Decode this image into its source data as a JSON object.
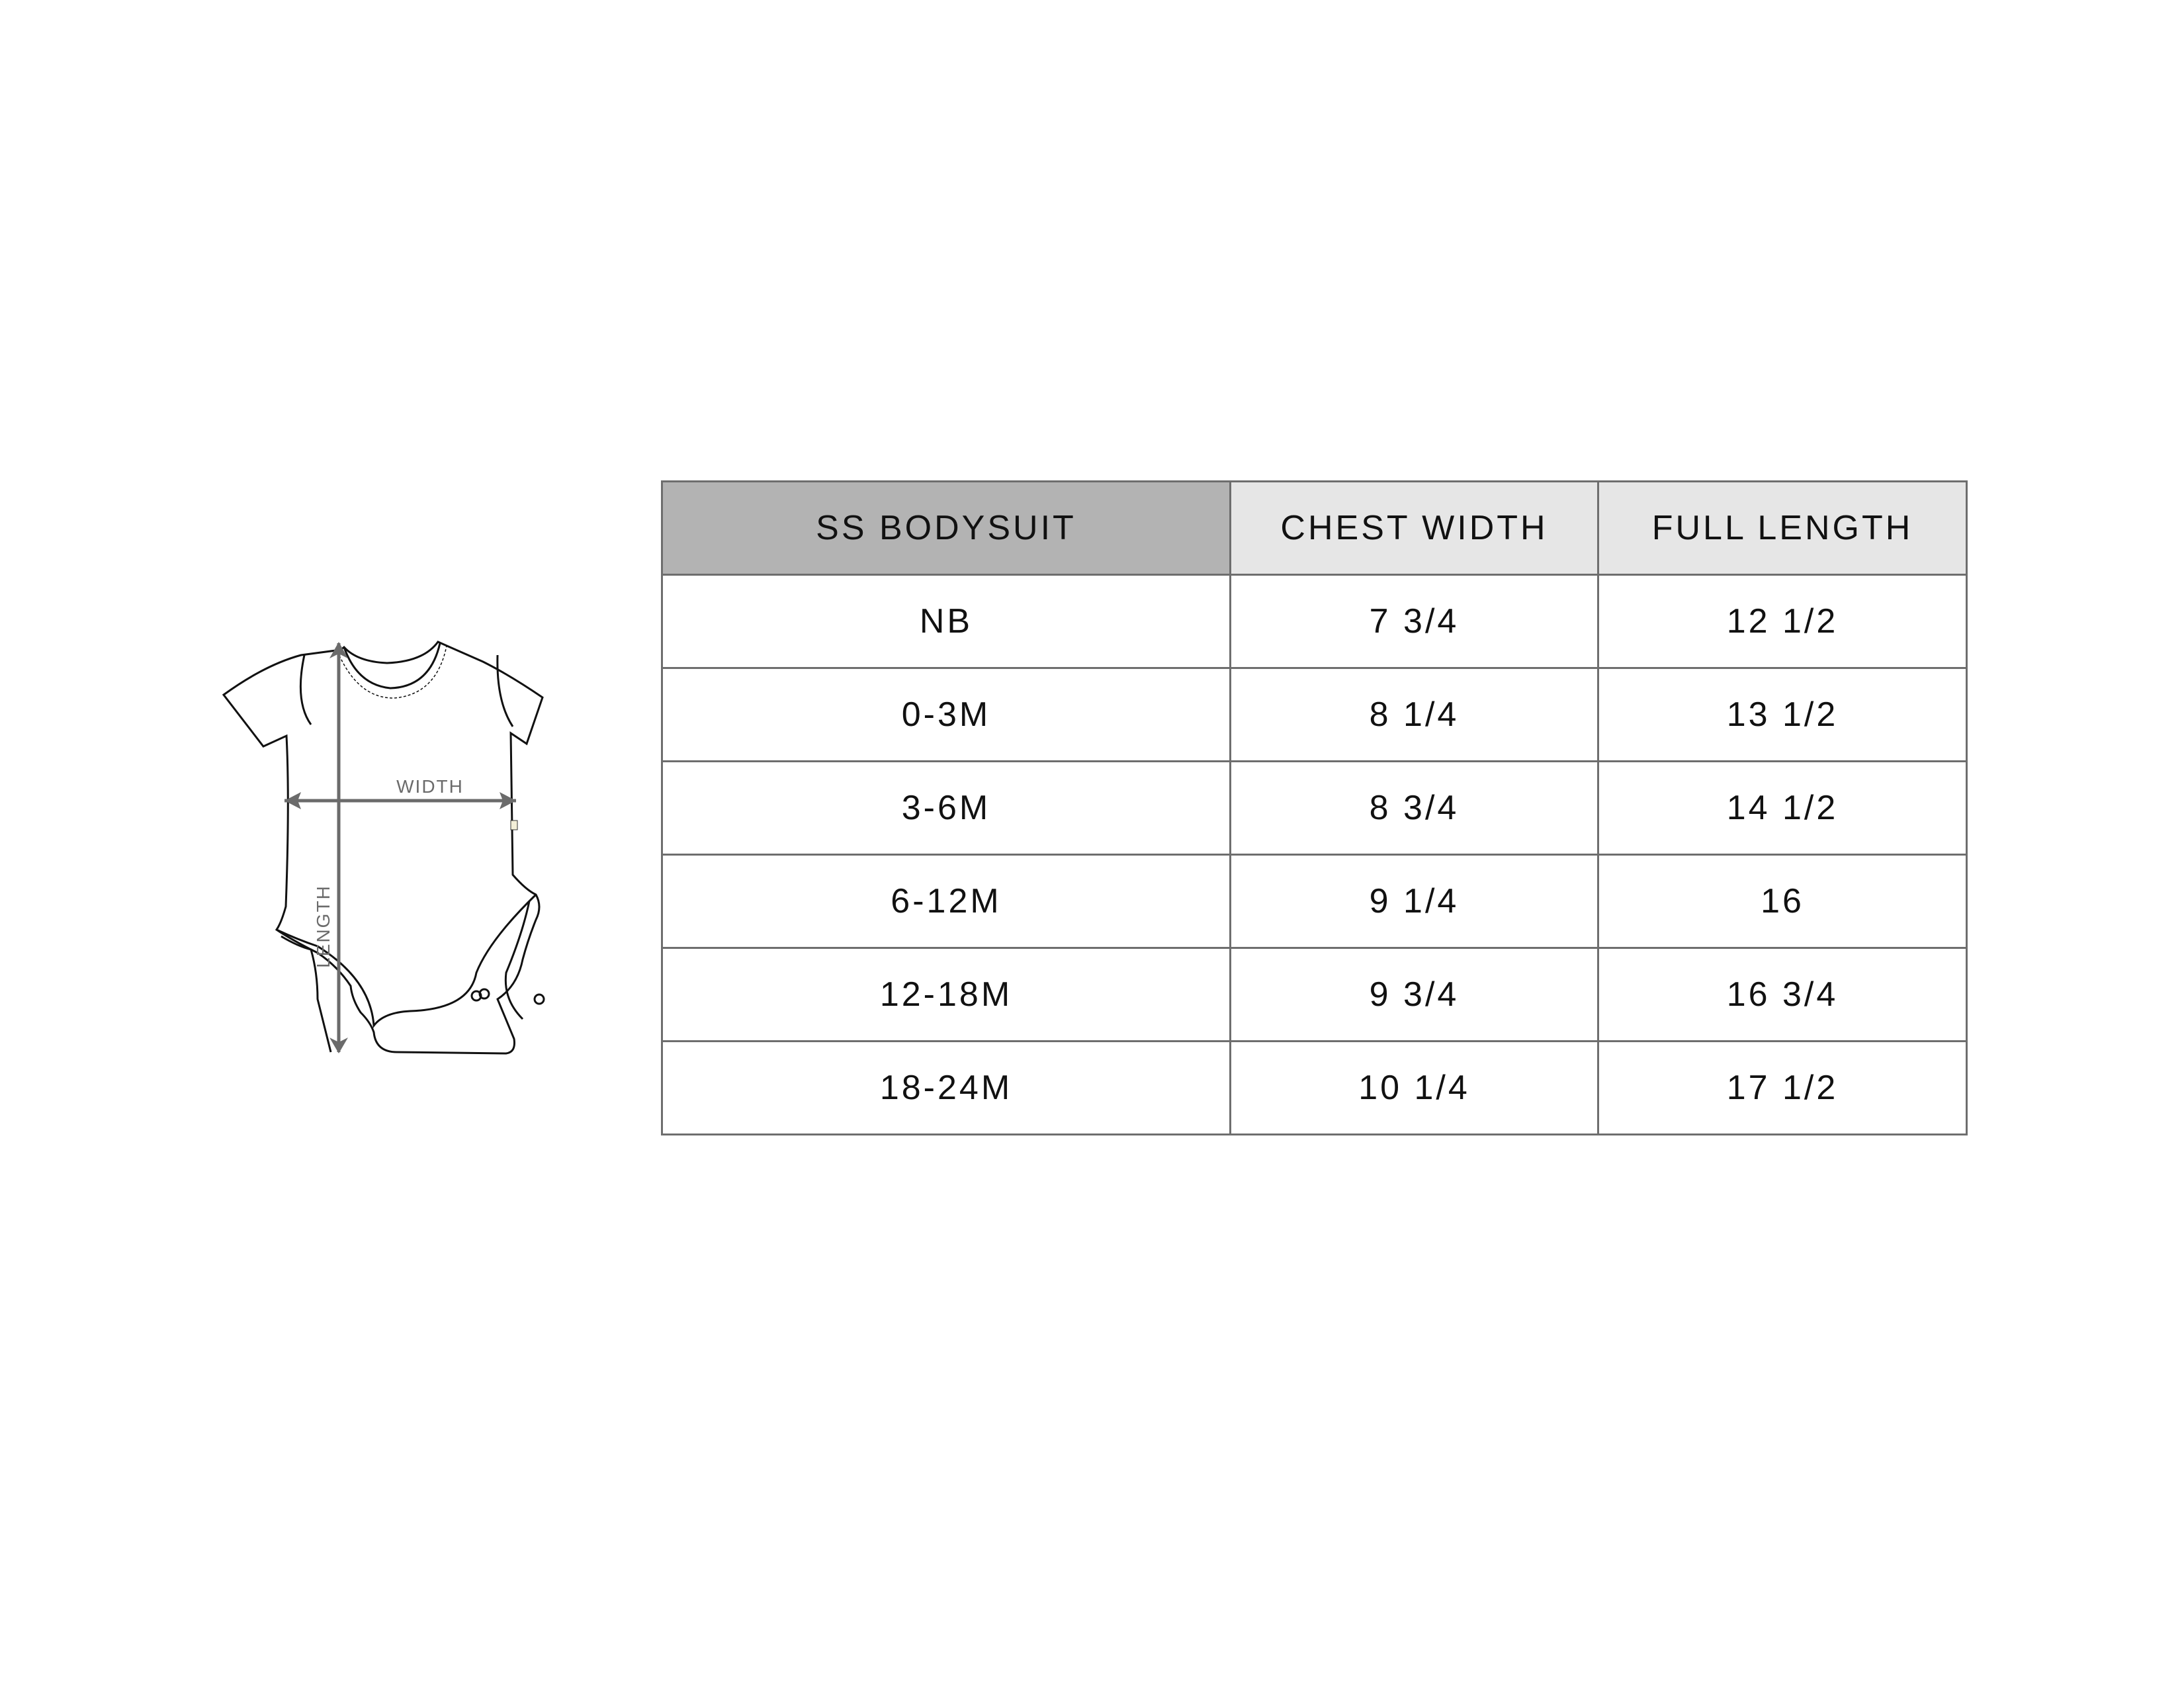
{
  "figure": {
    "width_label": "WIDTH",
    "length_label": "LENGTH"
  },
  "table": {
    "headers": [
      "SS BODYSUIT",
      "CHEST WIDTH",
      "FULL LENGTH"
    ],
    "rows": [
      [
        "NB",
        "7 3/4",
        "12 1/2"
      ],
      [
        "0-3M",
        "8 1/4",
        "13 1/2"
      ],
      [
        "3-6M",
        "8 3/4",
        "14 1/2"
      ],
      [
        "6-12M",
        "9 1/4",
        "16"
      ],
      [
        "12-18M",
        "9 3/4",
        "16 3/4"
      ],
      [
        "18-24M",
        "10 1/4",
        "17 1/2"
      ]
    ],
    "header_color": "#b3b3b3",
    "subheader_color": "#e6e6e6"
  }
}
